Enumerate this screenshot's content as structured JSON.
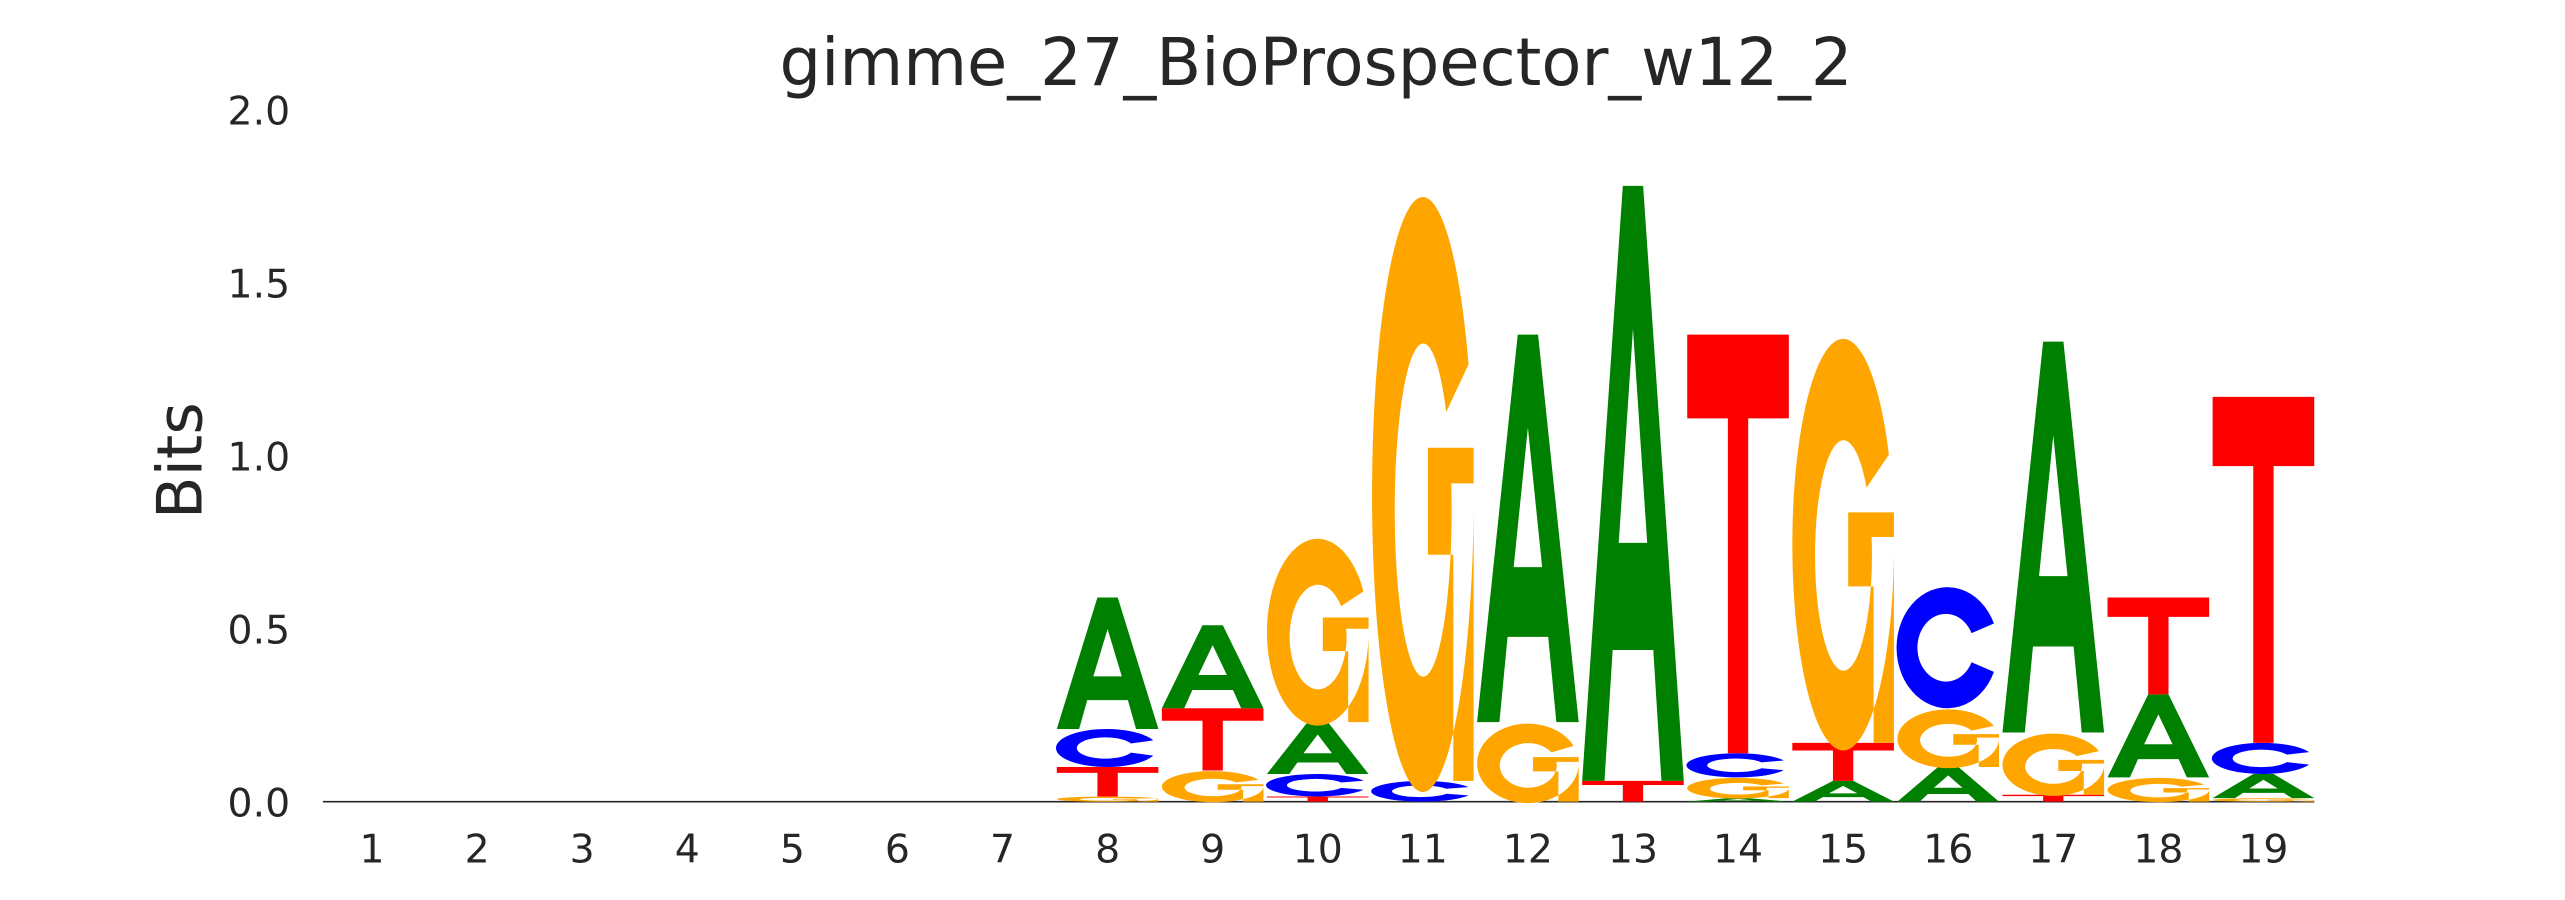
{
  "chart_data": {
    "type": "sequence-logo",
    "title": "gimme_27_BioProspector_w12_2",
    "xlabel": "",
    "ylabel": "Bits",
    "ylim": [
      0,
      2.0
    ],
    "yticks": [
      "0.0",
      "0.5",
      "1.0",
      "1.5",
      "2.0"
    ],
    "positions": [
      "1",
      "2",
      "3",
      "4",
      "5",
      "6",
      "7",
      "8",
      "9",
      "10",
      "11",
      "12",
      "13",
      "14",
      "15",
      "16",
      "17",
      "18",
      "19"
    ],
    "colors": {
      "A": "#008000",
      "C": "#0000ff",
      "G": "#ffa500",
      "T": "#ff0000"
    },
    "columns": [
      [],
      [],
      [],
      [],
      [],
      [],
      [],
      [
        {
          "b": "G",
          "h": 0.015
        },
        {
          "b": "T",
          "h": 0.085
        },
        {
          "b": "C",
          "h": 0.11
        },
        {
          "b": "A",
          "h": 0.38
        }
      ],
      [
        {
          "b": "G",
          "h": 0.09
        },
        {
          "b": "T",
          "h": 0.18
        },
        {
          "b": "A",
          "h": 0.24
        }
      ],
      [
        {
          "b": "T",
          "h": 0.015
        },
        {
          "b": "C",
          "h": 0.065
        },
        {
          "b": "A",
          "h": 0.15
        },
        {
          "b": "G",
          "h": 0.54
        }
      ],
      [
        {
          "b": "C",
          "h": 0.06
        },
        {
          "b": "G",
          "h": 1.72
        }
      ],
      [
        {
          "b": "G",
          "h": 0.23
        },
        {
          "b": "A",
          "h": 1.12
        }
      ],
      [
        {
          "b": "T",
          "h": 0.06
        },
        {
          "b": "A",
          "h": 1.72
        }
      ],
      [
        {
          "b": "A",
          "h": 0.01
        },
        {
          "b": "G",
          "h": 0.06
        },
        {
          "b": "C",
          "h": 0.07
        },
        {
          "b": "T",
          "h": 1.21
        }
      ],
      [
        {
          "b": "A",
          "h": 0.06
        },
        {
          "b": "T",
          "h": 0.11
        },
        {
          "b": "G",
          "h": 1.19
        }
      ],
      [
        {
          "b": "A",
          "h": 0.1
        },
        {
          "b": "G",
          "h": 0.17
        },
        {
          "b": "C",
          "h": 0.35
        }
      ],
      [
        {
          "b": "T",
          "h": 0.02
        },
        {
          "b": "G",
          "h": 0.18
        },
        {
          "b": "A",
          "h": 1.13
        }
      ],
      [
        {
          "b": "G",
          "h": 0.07
        },
        {
          "b": "A",
          "h": 0.24
        },
        {
          "b": "T",
          "h": 0.28
        }
      ],
      [
        {
          "b": "G",
          "h": 0.01
        },
        {
          "b": "A",
          "h": 0.07
        },
        {
          "b": "C",
          "h": 0.09
        },
        {
          "b": "T",
          "h": 1.0
        }
      ]
    ]
  }
}
